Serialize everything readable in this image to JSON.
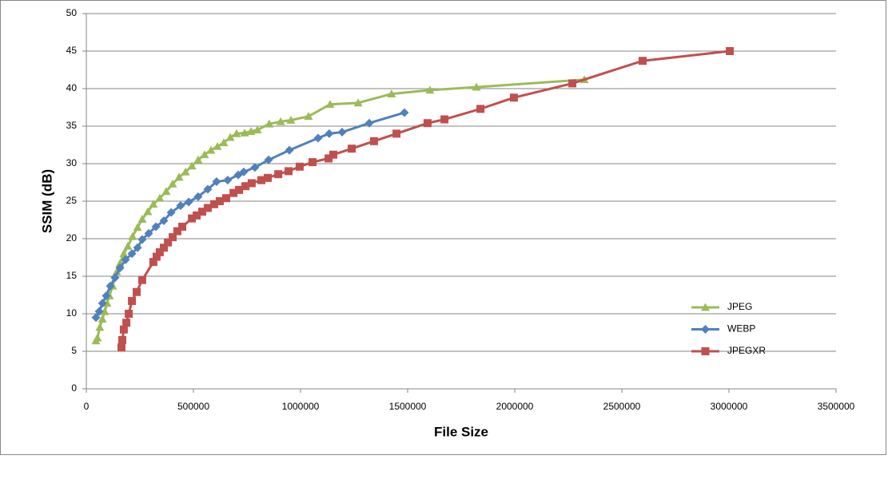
{
  "chart_data": {
    "type": "line",
    "x_label": "File Size",
    "y_label": "SSIM (dB)",
    "xlim": [
      0,
      3500000
    ],
    "xticks": [
      0,
      500000,
      1000000,
      1500000,
      2000000,
      2500000,
      3000000,
      3500000
    ],
    "ylim": [
      0,
      50
    ],
    "yticks": [
      0,
      5,
      10,
      15,
      20,
      25,
      30,
      35,
      40,
      45,
      50
    ],
    "grid": true,
    "legend": "right",
    "series": [
      {
        "name": "JPEG",
        "color": "#9bbb59",
        "marker": "triangle",
        "x": [
          45000,
          52000,
          63000,
          75000,
          86000,
          97000,
          108000,
          123000,
          142000,
          157000,
          175000,
          194000,
          216000,
          239000,
          261000,
          287000,
          313000,
          343000,
          373000,
          403000,
          433000,
          463000,
          493000,
          522000,
          552000,
          582000,
          612000,
          642000,
          672000,
          701000,
          739000,
          769000,
          799000,
          854000,
          907000,
          955000,
          1037000,
          1138000,
          1269000,
          1425000,
          1604000,
          1821000,
          2325000
        ],
        "values": [
          6.4,
          6.8,
          8.2,
          9.3,
          10.3,
          11.4,
          12.4,
          13.7,
          15.6,
          16.7,
          18,
          19,
          20.3,
          21.5,
          22.6,
          23.6,
          24.6,
          25.4,
          26.3,
          27.3,
          28.2,
          28.9,
          29.7,
          30.5,
          31.2,
          31.8,
          32.3,
          32.8,
          33.5,
          34,
          34.1,
          34.3,
          34.5,
          35.3,
          35.6,
          35.8,
          36.3,
          37.9,
          38.1,
          39.3,
          39.8,
          40.2,
          41.2
        ]
      },
      {
        "name": "WEBP",
        "color": "#4f81bd",
        "marker": "diamond",
        "x": [
          45000,
          60000,
          75000,
          93000,
          112000,
          134000,
          157000,
          183000,
          213000,
          239000,
          261000,
          291000,
          325000,
          362000,
          396000,
          440000,
          478000,
          522000,
          567000,
          608000,
          660000,
          709000,
          735000,
          787000,
          851000,
          948000,
          1082000,
          1134000,
          1194000,
          1321000,
          1485000
        ],
        "values": [
          9.5,
          10.3,
          11.4,
          12.4,
          13.7,
          14.8,
          16.1,
          17.2,
          18,
          18.8,
          19.9,
          20.7,
          21.6,
          22.4,
          23.5,
          24.4,
          24.9,
          25.6,
          26.6,
          27.6,
          27.8,
          28.5,
          28.9,
          29.5,
          30.5,
          31.8,
          33.4,
          34,
          34.2,
          35.4,
          36.8
        ]
      },
      {
        "name": "JPEGXR",
        "color": "#c0504d",
        "marker": "square",
        "x": [
          164000,
          168000,
          175000,
          187000,
          198000,
          213000,
          235000,
          261000,
          313000,
          328000,
          343000,
          362000,
          381000,
          403000,
          425000,
          448000,
          493000,
          515000,
          541000,
          567000,
          597000,
          623000,
          653000,
          687000,
          713000,
          743000,
          772000,
          817000,
          847000,
          896000,
          944000,
          996000,
          1056000,
          1131000,
          1153000,
          1239000,
          1343000,
          1448000,
          1593000,
          1672000,
          1840000,
          1996000,
          2269000,
          2597000,
          3004000
        ],
        "values": [
          5.5,
          6.5,
          7.9,
          8.8,
          10,
          11.7,
          12.9,
          14.5,
          16.9,
          17.6,
          18.2,
          18.8,
          19.5,
          20.2,
          21,
          21.6,
          22.7,
          23.1,
          23.6,
          24.1,
          24.6,
          25,
          25.4,
          26.1,
          26.5,
          27,
          27.4,
          27.8,
          28.1,
          28.6,
          29,
          29.6,
          30.2,
          30.7,
          31.2,
          32,
          33,
          34,
          35.4,
          35.9,
          37.3,
          38.8,
          40.7,
          43.7,
          45
        ]
      }
    ]
  }
}
